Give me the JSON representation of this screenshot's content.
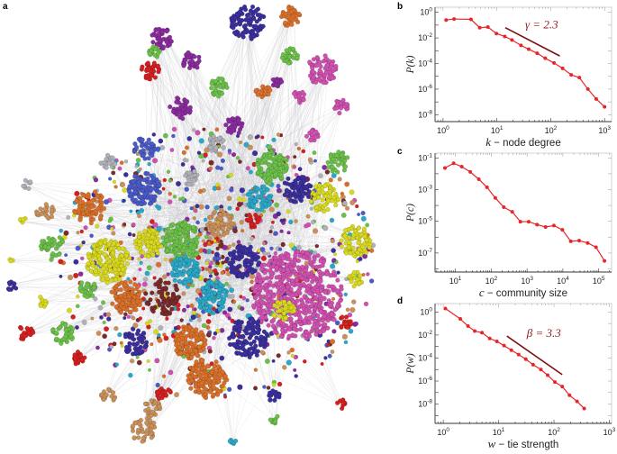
{
  "panel_labels": {
    "a": "a",
    "b": "b",
    "c": "c",
    "d": "d"
  },
  "network": {
    "community_colors": [
      "#3b2f9c",
      "#d9702a",
      "#8a2c9e",
      "#d42020",
      "#6cc04a",
      "#d050b0",
      "#d8d820",
      "#c8905a",
      "#b0b0b8",
      "#2aa8c8",
      "#7a2a2a",
      "#4a5ac8"
    ],
    "edge_color": "#c8c8cc"
  },
  "chart_data": [
    {
      "id": "b",
      "type": "line",
      "xlabel_var": "k",
      "xlabel_text": " − node degree",
      "ylabel": "P(k)",
      "x_scale": "log",
      "y_scale": "log",
      "xlim": [
        0.71,
        1350
      ],
      "ylim": [
        2.9e-09,
        2.5
      ],
      "x_ticks": [
        1,
        10,
        100,
        1000
      ],
      "x_tick_labels": [
        "10^0",
        "10^1",
        "10^2",
        "10^3"
      ],
      "y_ticks": [
        1,
        0.01,
        0.0001,
        1e-06,
        1e-08
      ],
      "y_tick_labels": [
        "10^0",
        "10^-2",
        "10^-4",
        "10^-6",
        "10^-8"
      ],
      "color": "#e8262a",
      "x": [
        1.14,
        1.6,
        3.3,
        4.8,
        6.8,
        9.8,
        14,
        19,
        28,
        39,
        56,
        79,
        115,
        166,
        240,
        340,
        490,
        700,
        1000
      ],
      "y": [
        0.25,
        0.3,
        0.28,
        0.063,
        0.071,
        0.022,
        0.013,
        0.0069,
        0.0026,
        0.0013,
        0.00063,
        0.00026,
        0.00011,
        4.2e-05,
        1.3e-05,
        7.9e-06,
        1e-06,
        1.7e-07,
        4.1e-08
      ],
      "reference_line": {
        "x": [
          14.3,
          147
        ],
        "y": [
          0.063,
          0.00039
        ],
        "label": "γ = 2.3",
        "color": "#7a1010"
      },
      "grid": false
    },
    {
      "id": "c",
      "type": "line",
      "xlabel_var": "c",
      "xlabel_text": " − community size",
      "ylabel": "P(c)",
      "x_scale": "log",
      "y_scale": "log",
      "xlim": [
        2.7,
        229000
      ],
      "ylim": [
        6.3e-09,
        0.2
      ],
      "x_ticks": [
        10,
        100,
        1000,
        10000,
        100000
      ],
      "x_tick_labels": [
        "10^1",
        "10^2",
        "10^3",
        "10^4",
        "10^5"
      ],
      "y_ticks": [
        0.1,
        0.001,
        1e-05,
        1e-07
      ],
      "y_tick_labels": [
        "10^-1",
        "10^-3",
        "10^-5",
        "10^-7"
      ],
      "color": "#e8262a",
      "x": [
        5.1,
        8.9,
        15,
        26,
        45,
        76,
        130,
        224,
        385,
        650,
        1110,
        1900,
        3280,
        5600,
        9670,
        16600,
        28500,
        49000,
        84000,
        145000
      ],
      "y": [
        0.023,
        0.046,
        0.028,
        0.013,
        0.0045,
        0.0014,
        0.0003,
        7.8e-05,
        4e-05,
        9.5e-06,
        9.5e-06,
        6.2e-06,
        4.4e-06,
        5.4e-06,
        2.9e-06,
        5.5e-07,
        6e-07,
        4.3e-07,
        2.3e-07,
        3.2e-08
      ],
      "grid": false
    },
    {
      "id": "d",
      "type": "line",
      "xlabel_var": "w",
      "xlabel_text": " − tie strength",
      "ylabel": "P(w)",
      "x_scale": "log",
      "y_scale": "log",
      "xlim": [
        0.71,
        1100
      ],
      "ylim": [
        2.1e-10,
        5.4
      ],
      "x_ticks": [
        1,
        10,
        100,
        1000
      ],
      "x_tick_labels": [
        "10^0",
        "10^1",
        "10^2",
        "10^3"
      ],
      "y_ticks": [
        1,
        0.01,
        0.0001,
        1e-06,
        1e-08
      ],
      "y_tick_labels": [
        "10^0",
        "10^-2",
        "10^-4",
        "10^-6",
        "10^-8"
      ],
      "color": "#e8262a",
      "x": [
        1.09,
        2.03,
        2.8,
        3.7,
        5.0,
        6.9,
        9.3,
        12.5,
        17,
        23,
        31,
        42,
        58,
        77,
        104,
        141,
        191,
        261,
        352
      ],
      "y": [
        2.0,
        0.25,
        0.059,
        0.022,
        0.016,
        0.005,
        0.0028,
        0.0012,
        0.00048,
        0.0002,
        7.9e-05,
        2.6e-05,
        1e-05,
        3.2e-06,
        8.1e-07,
        3.3e-07,
        5.8e-08,
        1.7e-08,
        4.1e-09
      ],
      "reference_line": {
        "x": [
          14.1,
          141
        ],
        "y": [
          0.0081,
          3.6e-06
        ],
        "label": "β = 3.3",
        "color": "#7a1010"
      },
      "grid": false
    }
  ]
}
